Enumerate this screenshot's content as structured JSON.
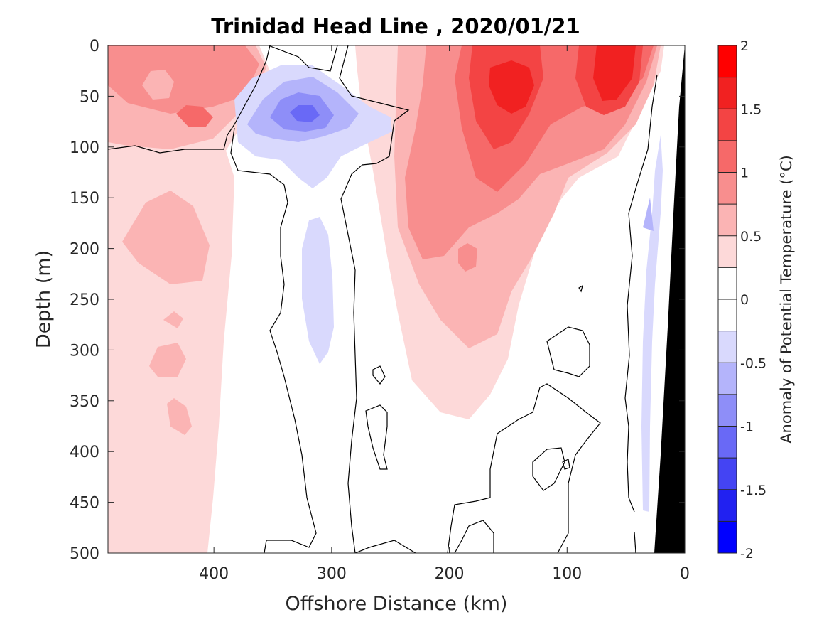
{
  "chart_data": {
    "type": "heatmap",
    "subtype": "filled-contour section",
    "title": "Trinidad Head Line , 2020/01/21",
    "xlabel": "Offshore Distance (km)",
    "ylabel": "Depth (m)",
    "colorbar_label": "Anomaly of Potential Temperature (°C)",
    "xlim": [
      490,
      0
    ],
    "ylim": [
      0,
      500
    ],
    "y_reversed": true,
    "x_reversed": true,
    "xticks": [
      400,
      300,
      200,
      100,
      0
    ],
    "yticks": [
      0,
      50,
      100,
      150,
      200,
      250,
      300,
      350,
      400,
      450,
      500
    ],
    "colorbar": {
      "range": [
        -2,
        2
      ],
      "step": 0.25,
      "tick_values": [
        -2,
        -1.5,
        -1,
        -0.5,
        0,
        0.5,
        1,
        1.5,
        2
      ],
      "tick_labels": [
        "-2",
        "-1.5",
        "-1",
        "-0.5",
        "0",
        "0.5",
        "1",
        "1.5",
        "2"
      ]
    },
    "colors": {
      "pos": [
        "#ffffff",
        "#fdd9d9",
        "#fbb4b4",
        "#f88e8e",
        "#f66969",
        "#f34444",
        "#f12121",
        "#ff0000"
      ],
      "neg": [
        "#ffffff",
        "#d9d9fd",
        "#b4b4fb",
        "#8e8ef8",
        "#6969f6",
        "#4444f3",
        "#2121f1",
        "#0000ff"
      ],
      "bathymetry": "#000000"
    },
    "regions": [
      {
        "name": "warm-core-offshore-upper",
        "anomaly": 0.75,
        "x_range": [
          490,
          340
        ],
        "depth_range": [
          0,
          95
        ]
      },
      {
        "name": "warm-patch-offshore",
        "anomaly": 1.25,
        "center": [
          415,
          70
        ]
      },
      {
        "name": "warm-band-offshore-deep",
        "anomaly": 0.25,
        "x_range": [
          490,
          340
        ],
        "depth_range": [
          0,
          500
        ]
      },
      {
        "name": "warm-patch-offshore-mid",
        "anomaly": 0.5,
        "center": [
          430,
          215
        ]
      },
      {
        "name": "cold-core",
        "anomaly": -0.875,
        "center": [
          318,
          72
        ]
      },
      {
        "name": "cold-tongue",
        "anomaly": -0.25,
        "center": [
          318,
          255
        ]
      },
      {
        "name": "warm-core-nearshore-a",
        "anomaly": 1.75,
        "center": [
          150,
          45
        ]
      },
      {
        "name": "warm-core-nearshore-b",
        "anomaly": 1.75,
        "center": [
          68,
          38
        ]
      },
      {
        "name": "warm-plume-deep",
        "anomaly": 0.75,
        "center": [
          195,
          200
        ]
      },
      {
        "name": "warm-band-nearshore-deep",
        "anomaly": 0.25,
        "x_range": [
          245,
          160
        ],
        "depth_range": [
          0,
          360
        ]
      },
      {
        "name": "cold-strip-nearshore",
        "anomaly": -0.375,
        "x_range": [
          45,
          32
        ],
        "depth_range": [
          90,
          465
        ]
      }
    ]
  }
}
